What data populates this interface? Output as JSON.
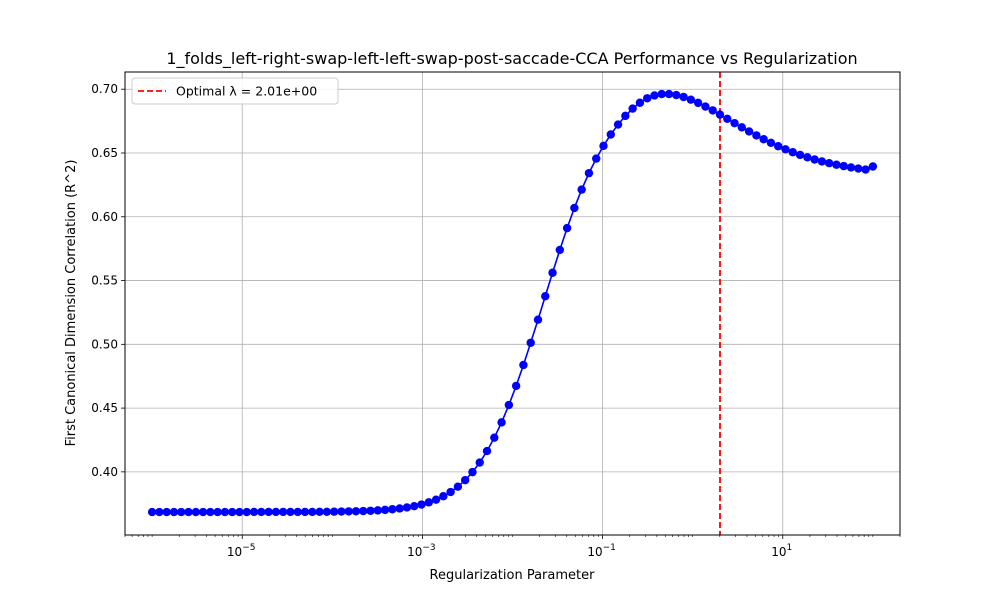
{
  "chart_data": {
    "type": "line",
    "title": "1_folds_left-right-swap-left-left-swap-post-saccade-CCA Performance vs Regularization",
    "xlabel": "Regularization Parameter",
    "ylabel": "First Canonical Dimension Correlation (R^2)",
    "x_scale": "log",
    "x_range": [
      5e-07,
      200
    ],
    "x_ticks": [
      {
        "value": 1e-05,
        "base": "10",
        "exp": "−5"
      },
      {
        "value": 0.001,
        "base": "10",
        "exp": "−3"
      },
      {
        "value": 0.1,
        "base": "10",
        "exp": "−1"
      },
      {
        "value": 10,
        "base": "10",
        "exp": "1"
      }
    ],
    "ylim": [
      0.3505,
      0.7135
    ],
    "y_ticks": [
      "0.40",
      "0.45",
      "0.50",
      "0.55",
      "0.60",
      "0.65",
      "0.70"
    ],
    "grid": true,
    "legend_position": "top-left",
    "series_color": "#0000ff",
    "optimal_line_color": "#ff0000",
    "optimal_lambda": 2.01,
    "legend_label": "Optimal λ = 2.01e+00",
    "series": [
      {
        "log10_x_start": -6,
        "log10_x_end": 2,
        "count": 100,
        "values": [
          0.3685,
          0.3685,
          0.3685,
          0.3685,
          0.3685,
          0.3685,
          0.3685,
          0.3685,
          0.3685,
          0.3685,
          0.3685,
          0.3685,
          0.3685,
          0.3685,
          0.3686,
          0.3686,
          0.3686,
          0.3686,
          0.3686,
          0.3686,
          0.3686,
          0.3686,
          0.3686,
          0.3687,
          0.3687,
          0.3688,
          0.3689,
          0.369,
          0.3691,
          0.3693,
          0.3695,
          0.3698,
          0.3702,
          0.3707,
          0.3713,
          0.3721,
          0.3731,
          0.3744,
          0.3761,
          0.3782,
          0.3809,
          0.3842,
          0.3884,
          0.3935,
          0.3998,
          0.4073,
          0.4163,
          0.4268,
          0.4388,
          0.4524,
          0.4674,
          0.4838,
          0.5012,
          0.5193,
          0.5377,
          0.5561,
          0.574,
          0.5911,
          0.6069,
          0.6213,
          0.6342,
          0.6456,
          0.6556,
          0.6645,
          0.6723,
          0.6791,
          0.6848,
          0.6894,
          0.6929,
          0.6951,
          0.6962,
          0.6962,
          0.6954,
          0.6939,
          0.6918,
          0.6893,
          0.6864,
          0.6834,
          0.6801,
          0.6768,
          0.6734,
          0.6701,
          0.6669,
          0.6638,
          0.6608,
          0.658,
          0.6553,
          0.6529,
          0.6506,
          0.6485,
          0.6466,
          0.6449,
          0.6434,
          0.642,
          0.6408,
          0.6397,
          0.6387,
          0.6378,
          0.637,
          0.6394
        ]
      }
    ]
  }
}
